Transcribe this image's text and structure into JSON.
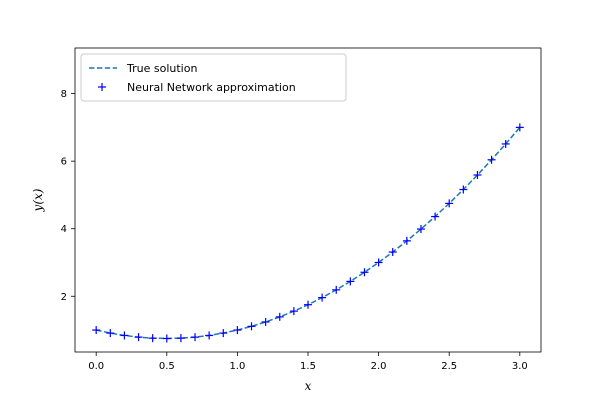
{
  "chart_data": {
    "type": "line",
    "title": "",
    "xlabel": "x",
    "ylabel": "y(x)",
    "xlim": [
      -0.15,
      3.15
    ],
    "ylim": [
      0.35,
      9.35
    ],
    "x_ticks": [
      0.0,
      0.5,
      1.0,
      1.5,
      2.0,
      2.5,
      3.0
    ],
    "x_tick_labels": [
      "0.0",
      "0.5",
      "1.0",
      "1.5",
      "2.0",
      "2.5",
      "3.0"
    ],
    "y_ticks": [
      2,
      4,
      6,
      8
    ],
    "y_tick_labels": [
      "2",
      "4",
      "6",
      "8"
    ],
    "grid": false,
    "legend_position": "top-left",
    "series": [
      {
        "name": "True solution",
        "style": "dashed-line",
        "color": "#1f77b4",
        "x": [
          0.0,
          0.1,
          0.2,
          0.3,
          0.4,
          0.5,
          0.6,
          0.7,
          0.8,
          0.9,
          1.0,
          1.1,
          1.2,
          1.3,
          1.4,
          1.5,
          1.6,
          1.7,
          1.8,
          1.9,
          2.0,
          2.1,
          2.2,
          2.3,
          2.4,
          2.5,
          2.6,
          2.7,
          2.8,
          2.9,
          3.0
        ],
        "y": [
          1.0,
          0.91,
          0.84,
          0.79,
          0.76,
          0.75,
          0.76,
          0.79,
          0.84,
          0.91,
          1.0,
          1.11,
          1.24,
          1.39,
          1.56,
          1.75,
          1.96,
          2.19,
          2.44,
          2.71,
          3.0,
          3.31,
          3.64,
          3.99,
          4.36,
          4.75,
          5.16,
          5.59,
          6.04,
          6.51,
          7.0
        ]
      },
      {
        "name": "Neural Network approximation",
        "style": "plus-markers",
        "color": "#0000ff",
        "x": [
          0.0,
          0.1,
          0.2,
          0.3,
          0.4,
          0.5,
          0.6,
          0.7,
          0.8,
          0.9,
          1.0,
          1.1,
          1.2,
          1.3,
          1.4,
          1.5,
          1.6,
          1.7,
          1.8,
          1.9,
          2.0,
          2.1,
          2.2,
          2.3,
          2.4,
          2.5,
          2.6,
          2.7,
          2.8,
          2.9,
          3.0
        ],
        "y": [
          1.0,
          0.91,
          0.84,
          0.79,
          0.76,
          0.75,
          0.76,
          0.79,
          0.84,
          0.91,
          1.0,
          1.11,
          1.24,
          1.39,
          1.56,
          1.75,
          1.96,
          2.19,
          2.44,
          2.71,
          3.0,
          3.31,
          3.64,
          3.99,
          4.36,
          4.75,
          5.16,
          5.59,
          6.04,
          6.51,
          7.0
        ]
      }
    ]
  }
}
